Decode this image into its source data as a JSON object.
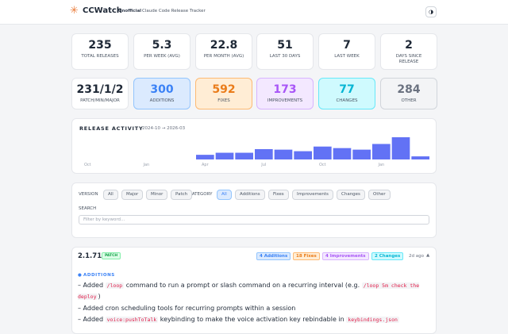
{
  "header": {
    "logo": "CCWatch",
    "tag": "Unofficial",
    "subtitle": "Claude Code Release Tracker"
  },
  "stats": [
    {
      "value": 235,
      "label": "TOTAL RELEASES"
    },
    {
      "value": 5.3,
      "label": "PER WEEK (AVG)"
    },
    {
      "value": 22.8,
      "label": "PER MONTH (AVG)"
    },
    {
      "value": 51,
      "label": "LAST 30 DAYS"
    },
    {
      "value": 7,
      "label": "LAST WEEK"
    },
    {
      "value": 2,
      "label": "DAYS SINCE RELEASE"
    }
  ],
  "categories": [
    {
      "value": "231/1/2",
      "label": "PATCH/MIN/MAJOR"
    },
    {
      "value": 300,
      "label": "ADDITIONS"
    },
    {
      "value": 592,
      "label": "FIXES"
    },
    {
      "value": 173,
      "label": "IMPROVEMENTS"
    },
    {
      "value": 77,
      "label": "CHANGES"
    },
    {
      "value": 284,
      "label": "OTHER"
    }
  ],
  "activity": {
    "type": "bar",
    "title": "RELEASE ACTIVITY",
    "range": "2024-10 → 2026-03",
    "color": "#6272f5",
    "categories": [
      "Oct",
      null,
      null,
      "Jan",
      null,
      null,
      "Apr",
      null,
      null,
      "Jul",
      null,
      null,
      "Oct",
      null,
      null,
      "Jan",
      null,
      null
    ],
    "values": [
      0,
      0,
      0,
      0,
      0,
      0,
      9,
      13,
      13,
      20,
      19,
      16,
      25,
      22,
      19,
      30,
      43,
      6
    ]
  },
  "filters": {
    "version_label": "VERSION",
    "version_options": [
      "All",
      "Major",
      "Minor",
      "Patch"
    ],
    "category_label": "CATEGORY",
    "category_options": [
      "All",
      "Additions",
      "Fixes",
      "Improvements",
      "Changes",
      "Other"
    ],
    "search_label": "SEARCH",
    "search_placeholder": "Filter by keyword..."
  },
  "release": {
    "version": "2.1.71",
    "kind": "PATCH",
    "badges": [
      "4 Additions",
      "18 Fixes",
      "4 Improvements",
      "2 Changes"
    ],
    "age": "2d ago",
    "section": "ADDITIONS",
    "items": [
      [
        "Added ",
        "/loop",
        " command to run a prompt or slash command on a recurring interval (e.g. ",
        "/loop 5m check the deploy",
        ")"
      ],
      [
        "Added cron scheduling tools for recurring prompts within a session"
      ],
      [
        "Added ",
        "voice:pushToTalk",
        " keybinding to make the voice activation key rebindable in ",
        "keybindings.json"
      ]
    ]
  }
}
